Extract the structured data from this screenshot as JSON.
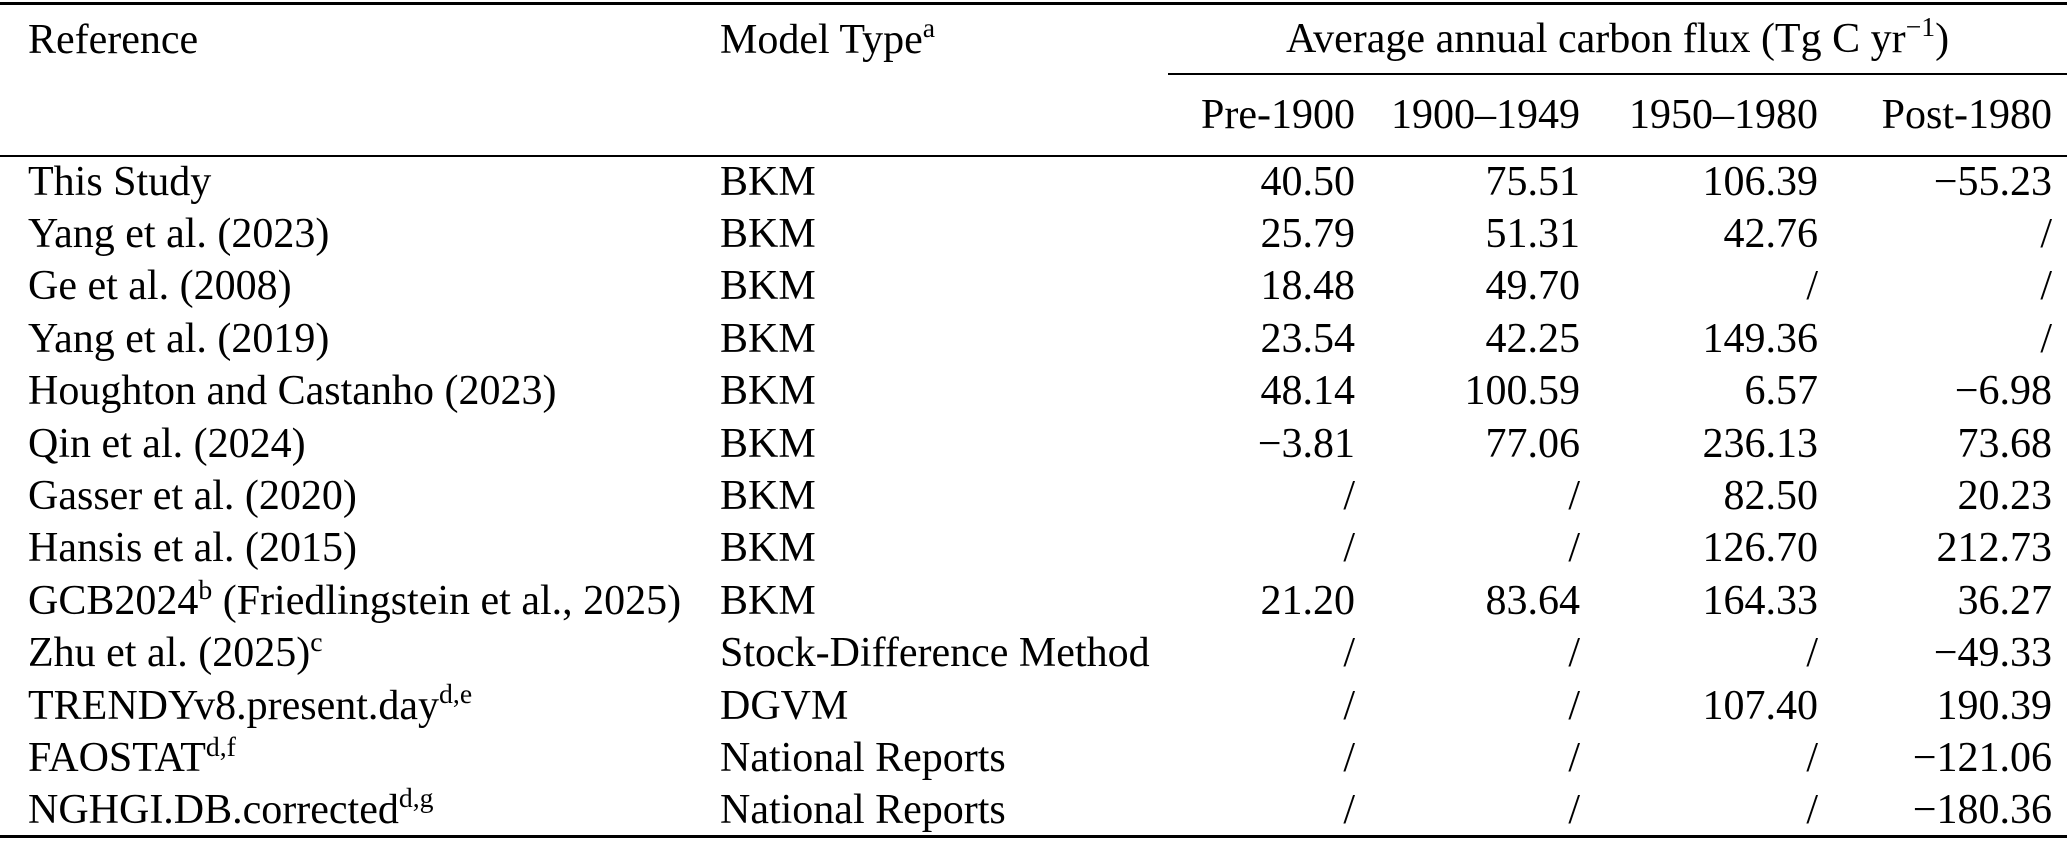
{
  "page": {
    "background_color": "#ffffff",
    "text_color": "#000000"
  },
  "table": {
    "headers": {
      "reference": "Reference",
      "model_type": "Model Type",
      "model_type_sup": "a",
      "flux_pre": "Average annual carbon flux (Tg C yr",
      "flux_sup": "−1",
      "flux_post": ")",
      "periods": [
        "Pre-1900",
        "1900–1949",
        "1950–1980",
        "Post-1980"
      ]
    },
    "missing_value_symbol": "/",
    "rows": [
      {
        "ref_pre": "This Study",
        "ref_sup": "",
        "ref_post": "",
        "model_type": "BKM",
        "values": [
          "40.50",
          "75.51",
          "106.39",
          "−55.23"
        ]
      },
      {
        "ref_pre": "Yang et al. (2023)",
        "ref_sup": "",
        "ref_post": "",
        "model_type": "BKM",
        "values": [
          "25.79",
          "51.31",
          "42.76",
          "/"
        ]
      },
      {
        "ref_pre": "Ge et al. (2008)",
        "ref_sup": "",
        "ref_post": "",
        "model_type": "BKM",
        "values": [
          "18.48",
          "49.70",
          "/",
          "/"
        ]
      },
      {
        "ref_pre": "Yang et al. (2019)",
        "ref_sup": "",
        "ref_post": "",
        "model_type": "BKM",
        "values": [
          "23.54",
          "42.25",
          "149.36",
          "/"
        ]
      },
      {
        "ref_pre": "Houghton and Castanho (2023)",
        "ref_sup": "",
        "ref_post": "",
        "model_type": "BKM",
        "values": [
          "48.14",
          "100.59",
          "6.57",
          "−6.98"
        ]
      },
      {
        "ref_pre": "Qin et al. (2024)",
        "ref_sup": "",
        "ref_post": "",
        "model_type": "BKM",
        "values": [
          "−3.81",
          "77.06",
          "236.13",
          "73.68"
        ]
      },
      {
        "ref_pre": "Gasser et al. (2020)",
        "ref_sup": "",
        "ref_post": "",
        "model_type": "BKM",
        "values": [
          "/",
          "/",
          "82.50",
          "20.23"
        ]
      },
      {
        "ref_pre": "Hansis et al. (2015)",
        "ref_sup": "",
        "ref_post": "",
        "model_type": "BKM",
        "values": [
          "/",
          "/",
          "126.70",
          "212.73"
        ]
      },
      {
        "ref_pre": "GCB2024",
        "ref_sup": "b",
        "ref_post": " (Friedlingstein et al., 2025)",
        "model_type": "BKM",
        "values": [
          "21.20",
          "83.64",
          "164.33",
          "36.27"
        ]
      },
      {
        "ref_pre": "Zhu et al. (2025)",
        "ref_sup": "c",
        "ref_post": "",
        "model_type": "Stock-Difference Method",
        "values": [
          "/",
          "/",
          "/",
          "−49.33"
        ]
      },
      {
        "ref_pre": "TRENDYv8.present.day",
        "ref_sup": "d,e",
        "ref_post": "",
        "model_type": "DGVM",
        "values": [
          "/",
          "/",
          "107.40",
          "190.39"
        ]
      },
      {
        "ref_pre": "FAOSTAT",
        "ref_sup": "d,f",
        "ref_post": "",
        "model_type": "National Reports",
        "values": [
          "/",
          "/",
          "/",
          "−121.06"
        ]
      },
      {
        "ref_pre": "NGHGI.DB.corrected",
        "ref_sup": "d,g",
        "ref_post": "",
        "model_type": "National Reports",
        "values": [
          "/",
          "/",
          "/",
          "−180.36"
        ]
      }
    ]
  }
}
